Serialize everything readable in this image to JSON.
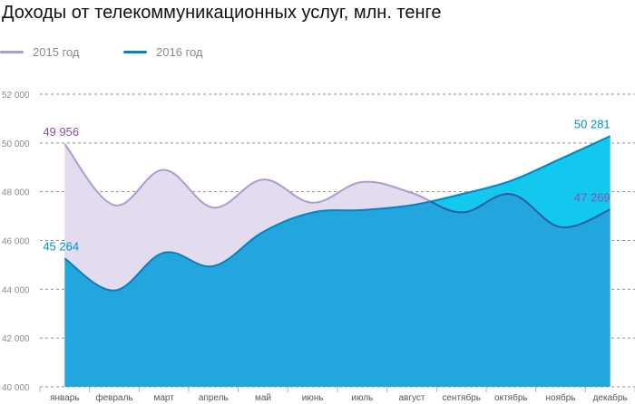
{
  "colors": {
    "series_2015_line": "#ad9bd0",
    "series_2015_fill": "#e3dcef",
    "series_2016_line": "#0a80bf",
    "series_2016_fill": "#12c8ee",
    "overlap_fill": "#23a6de",
    "overlap_line": "#1f5ea6",
    "label_2015": "#8a4fb2",
    "label_2016": "#0090c0"
  },
  "chart_data": {
    "type": "area",
    "title": "Доходы от телекоммуникационных услуг, млн. тенге",
    "xlabel": "",
    "ylabel": "",
    "categories": [
      "январь",
      "февраль",
      "март",
      "апрель",
      "май",
      "июнь",
      "июль",
      "август",
      "сентябрь",
      "октябрь",
      "ноябрь",
      "декабрь"
    ],
    "ylim": [
      40000,
      52000
    ],
    "yticks": [
      {
        "value": 40000,
        "label": "40 000"
      },
      {
        "value": 42000,
        "label": "42 000"
      },
      {
        "value": 44000,
        "label": "44 000"
      },
      {
        "value": 46000,
        "label": "46 000"
      },
      {
        "value": 48000,
        "label": "48 000"
      },
      {
        "value": 50000,
        "label": "50 000"
      },
      {
        "value": 52000,
        "label": "52 000"
      }
    ],
    "grid": true,
    "legend_position": "top-left",
    "series": [
      {
        "name": "2015 год",
        "values": [
          49956,
          47450,
          48900,
          47350,
          48500,
          47550,
          48400,
          47950,
          47150,
          47900,
          46550,
          47269
        ]
      },
      {
        "name": "2016 год",
        "values": [
          45264,
          43950,
          45500,
          44950,
          46350,
          47150,
          47250,
          47450,
          47900,
          48450,
          49350,
          50281
        ]
      }
    ],
    "data_labels": [
      {
        "series": 0,
        "index": 0,
        "text": "49 956"
      },
      {
        "series": 1,
        "index": 0,
        "text": "45 264"
      },
      {
        "series": 1,
        "index": 11,
        "text": "50 281"
      },
      {
        "series": 0,
        "index": 11,
        "text": "47 269"
      }
    ]
  }
}
